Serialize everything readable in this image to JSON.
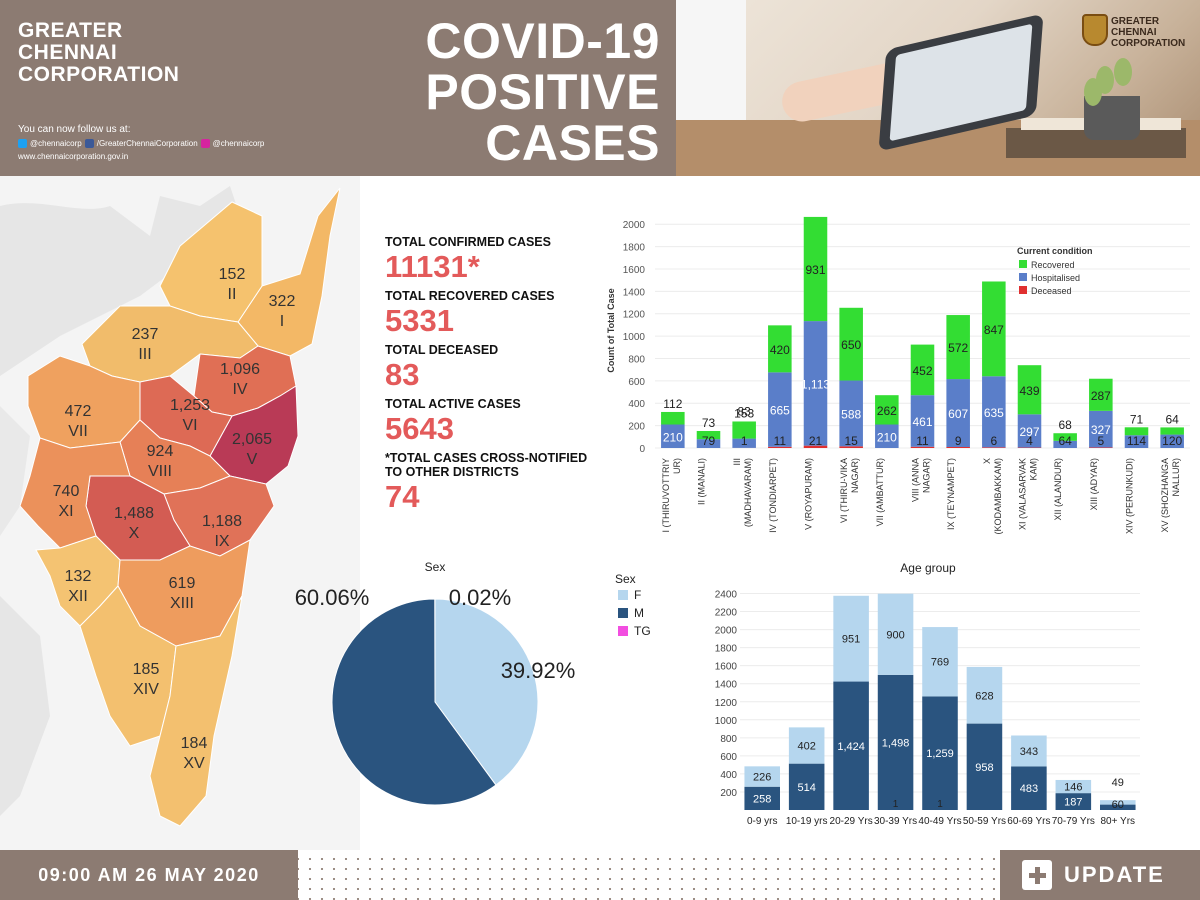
{
  "header": {
    "org_lines": [
      "GREATER",
      "CHENNAI",
      "CORPORATION"
    ],
    "title_lines": [
      "COVID-19",
      "POSITIVE",
      "CASES"
    ],
    "follow_text": "You can now follow us at:",
    "twitter": "@chennaicorp",
    "facebook": "/GreaterChennaiCorporation",
    "instagram": "@chennaicorp",
    "website": "www.chennaicorporation.gov.in",
    "logo_lines": [
      "GREATER",
      "CHENNAI",
      "CORPORATION"
    ]
  },
  "colors": {
    "brown": "#8c7b72",
    "red_value": "#e35a5a",
    "recovered": "#33dd33",
    "hospitalised": "#5a7ec9",
    "deceased": "#e03030",
    "female": "#b5d6ee",
    "male": "#2a547f",
    "tg": "#f24ee0"
  },
  "map": {
    "zones": [
      {
        "zone": "I",
        "count": "322",
        "color": "#f3b866"
      },
      {
        "zone": "II",
        "count": "152",
        "color": "#f5c26e"
      },
      {
        "zone": "III",
        "count": "237",
        "color": "#f1bc6b"
      },
      {
        "zone": "IV",
        "count": "1,096",
        "color": "#e06f55"
      },
      {
        "zone": "V",
        "count": "2,065",
        "color": "#b93a56"
      },
      {
        "zone": "VI",
        "count": "1,253",
        "color": "#dd6a55"
      },
      {
        "zone": "VII",
        "count": "472",
        "color": "#efa15f"
      },
      {
        "zone": "VIII",
        "count": "924",
        "color": "#e68057"
      },
      {
        "zone": "IX",
        "count": "1,188",
        "color": "#e07258"
      },
      {
        "zone": "X",
        "count": "1,488",
        "color": "#d35c53"
      },
      {
        "zone": "XI",
        "count": "740",
        "color": "#eb915b"
      },
      {
        "zone": "XII",
        "count": "132",
        "color": "#f4c372"
      },
      {
        "zone": "XIII",
        "count": "619",
        "color": "#ee9c5e"
      },
      {
        "zone": "XIV",
        "count": "185",
        "color": "#f3c06f"
      },
      {
        "zone": "XV",
        "count": "184",
        "color": "#f3c06f"
      }
    ]
  },
  "totals": {
    "confirmed_label": "TOTAL CONFIRMED CASES",
    "confirmed_value": "11131*",
    "recovered_label": "TOTAL RECOVERED CASES",
    "recovered_value": "5331",
    "deceased_label": "TOTAL DECEASED",
    "deceased_value": "83",
    "active_label": "TOTAL ACTIVE CASES",
    "active_value": "5643",
    "cross_label_1": "*TOTAL CASES CROSS-NOTIFIED",
    "cross_label_2": "TO OTHER DISTRICTS",
    "cross_value": "74"
  },
  "chart_data": [
    {
      "type": "bar",
      "stacked": true,
      "ylabel": "Count of Total Case",
      "ylim": [
        0,
        2100
      ],
      "yticks": [
        0,
        200,
        400,
        600,
        800,
        1000,
        1200,
        1400,
        1600,
        1800,
        2000
      ],
      "legend_title": "Current condition",
      "legend_position": "top-right",
      "grid": true,
      "categories": [
        "I (THIRUVOTTRIYUR)",
        "II (MANALI)",
        "III (MADHAVARAM)",
        "IV (TONDIARPET)",
        "V (ROYAPURAM)",
        "VI (THIRU-VIKA NAGAR)",
        "VII (AMBATTUR)",
        "VIII (ANNA NAGAR)",
        "IX (TEYNAMPET)",
        "X (KODAMBAKKAM)",
        "XI (VALASARVAKKAM)",
        "XII (ALANDUR)",
        "XIII (ADYAR)",
        "XIV (PERUNKUDI)",
        "XV (SHOZHANGANALLUR)"
      ],
      "category_lines": [
        [
          "I (THIRUVOTTRIY",
          "UR)"
        ],
        [
          "II (MANALI)"
        ],
        [
          "III",
          "(MADHAVARAM)"
        ],
        [
          "IV (TONDIARPET)"
        ],
        [
          "V (ROYAPURAM)"
        ],
        [
          "VI (THIRU-VIKA",
          "NAGAR)"
        ],
        [
          "VII (AMBATTUR)"
        ],
        [
          "VIII (ANNA",
          "NAGAR)"
        ],
        [
          "IX (TEYNAMPET)"
        ],
        [
          "X",
          "(KODAMBAKKAM)"
        ],
        [
          "XI (VALASARVAK",
          "KAM)"
        ],
        [
          "XII (ALANDUR)"
        ],
        [
          "XIII (ADYAR)"
        ],
        [
          "XIV (PERUNKUDI)"
        ],
        [
          "XV (SHOZHANGA",
          "NALLUR)"
        ]
      ],
      "series": [
        {
          "name": "Deceased",
          "values": [
            0,
            0,
            1,
            11,
            21,
            15,
            0,
            11,
            9,
            6,
            4,
            0,
            5,
            0,
            0
          ]
        },
        {
          "name": "Hospitalised",
          "values": [
            210,
            79,
            83,
            665,
            1113,
            588,
            210,
            461,
            607,
            635,
            297,
            64,
            327,
            114,
            120
          ]
        },
        {
          "name": "Recovered",
          "values": [
            112,
            73,
            153,
            420,
            931,
            650,
            262,
            452,
            572,
            847,
            439,
            68,
            287,
            71,
            64
          ]
        }
      ],
      "data_labels": {
        "deceased": [
          "",
          "",
          "1",
          "11",
          "21",
          "15",
          "",
          "11",
          "9",
          "6",
          "4",
          "",
          "5",
          "",
          ""
        ],
        "hospitalised": [
          "210",
          "79",
          "",
          "665",
          "1,113",
          "588",
          "210",
          "461",
          "607",
          "635",
          "297",
          "64",
          "327",
          "114",
          "120"
        ],
        "recovered": [
          "112",
          "73",
          "153",
          "420",
          "931",
          "650",
          "262",
          "452",
          "572",
          "847",
          "439",
          "68",
          "287",
          "71",
          "64"
        ],
        "extra": [
          "",
          "",
          "83",
          "",
          "",
          "",
          "",
          "",
          "",
          "",
          "",
          "",
          "",
          "",
          ""
        ]
      }
    },
    {
      "type": "pie",
      "title": "Sex",
      "legend_title": "Sex",
      "slices": [
        {
          "name": "F",
          "value": 39.92,
          "label": "39.92%"
        },
        {
          "name": "M",
          "value": 60.06,
          "label": "60.06%"
        },
        {
          "name": "TG",
          "value": 0.02,
          "label": "0.02%"
        }
      ]
    },
    {
      "type": "bar",
      "stacked": true,
      "title": "Age group",
      "ylim": [
        0,
        2450
      ],
      "yticks": [
        200,
        400,
        600,
        800,
        1000,
        1200,
        1400,
        1600,
        1800,
        2000,
        2200,
        2400
      ],
      "grid": true,
      "categories": [
        "0-9 yrs",
        "10-19 yrs",
        "20-29 Yrs",
        "30-39 Yrs",
        "40-49 Yrs",
        "50-59 Yrs",
        "60-69 Yrs",
        "70-79 Yrs",
        "80+ Yrs"
      ],
      "series": [
        {
          "name": "TG",
          "values": [
            0,
            0,
            0,
            1,
            1,
            0,
            0,
            0,
            0
          ]
        },
        {
          "name": "M",
          "values": [
            258,
            514,
            1424,
            1498,
            1259,
            958,
            483,
            187,
            60
          ]
        },
        {
          "name": "F",
          "values": [
            226,
            402,
            951,
            900,
            769,
            628,
            343,
            146,
            49
          ]
        }
      ],
      "data_labels": {
        "tg": [
          "",
          "",
          "",
          "1",
          "1",
          "",
          "",
          "",
          ""
        ],
        "m": [
          "258",
          "514",
          "1,424",
          "1,498",
          "1,259",
          "958",
          "483",
          "187",
          "60"
        ],
        "f": [
          "226",
          "402",
          "951",
          "900",
          "769",
          "628",
          "343",
          "146",
          "49"
        ]
      }
    }
  ],
  "footer": {
    "timestamp": "09:00 AM 26 MAY 2020",
    "update_label": "UPDATE"
  }
}
